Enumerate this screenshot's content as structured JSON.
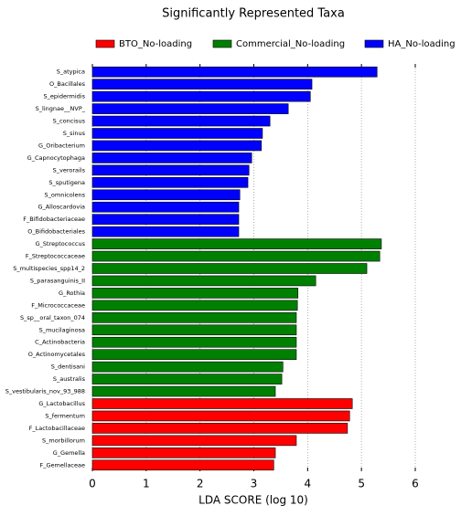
{
  "chart_data": {
    "type": "hbar",
    "title": "Significantly Represented Taxa",
    "x_label": "LDA SCORE (log 10)",
    "categories": [
      "S_atypica",
      "O_Bacillales",
      "S_epidermidis",
      "S_lingnae__NVP_",
      "S_concisus",
      "S_sinus",
      "G_Oribacterium",
      "G_Capnocytophaga",
      "S_verorails",
      "S_sputigena",
      "S_omnicolens",
      "G_Alloscardovia",
      "F_Bifidobacteriaceae",
      "O_Bifidobacteriales",
      "G_Streptococcus",
      "F_Streptococcaceae",
      "S_multispecies_spp14_2",
      "S_parasanguinis_II",
      "G_Rothia",
      "F_Micrococcaceae",
      "S_sp__oral_taxon_074",
      "S_mucilaginosa",
      "C_Actinobacteria",
      "O_Actinomycetales",
      "S_dentisani",
      "S_australis",
      "S_vestibularis_nov_93_988",
      "G_Lactobacillus",
      "S_fermentum",
      "F_Lactobacillaceae",
      "S_morbillorum",
      "G_Gemella",
      "F_Gemellaceae"
    ],
    "series": [
      {
        "name": "BTO_No-loading",
        "color": "#ff0000",
        "values": [
          null,
          null,
          null,
          null,
          null,
          null,
          null,
          null,
          null,
          null,
          null,
          null,
          null,
          null,
          null,
          null,
          null,
          null,
          null,
          null,
          null,
          null,
          null,
          null,
          null,
          null,
          null,
          4.83,
          4.78,
          4.74,
          3.79,
          3.4,
          3.37
        ]
      },
      {
        "name": "Commercial_No-loading",
        "color": "#008000",
        "values": [
          null,
          null,
          null,
          null,
          null,
          null,
          null,
          null,
          null,
          null,
          null,
          null,
          null,
          null,
          5.37,
          5.34,
          5.1,
          4.15,
          3.82,
          3.81,
          3.79,
          3.79,
          3.79,
          3.79,
          3.54,
          3.52,
          3.4,
          null,
          null,
          null,
          null,
          null,
          null
        ]
      },
      {
        "name": "HA_No-loading",
        "color": "#0000ff",
        "values": [
          5.29,
          4.08,
          4.05,
          3.64,
          3.3,
          3.16,
          3.14,
          2.96,
          2.91,
          2.89,
          2.74,
          2.72,
          2.72,
          2.72,
          null,
          null,
          null,
          null,
          null,
          null,
          null,
          null,
          null,
          null,
          null,
          null,
          null,
          null,
          null,
          null,
          null,
          null,
          null
        ]
      }
    ],
    "xlim": [
      0,
      6.3
    ],
    "xticks": [
      0,
      1,
      2,
      3,
      4,
      5,
      6
    ],
    "grid": true
  }
}
